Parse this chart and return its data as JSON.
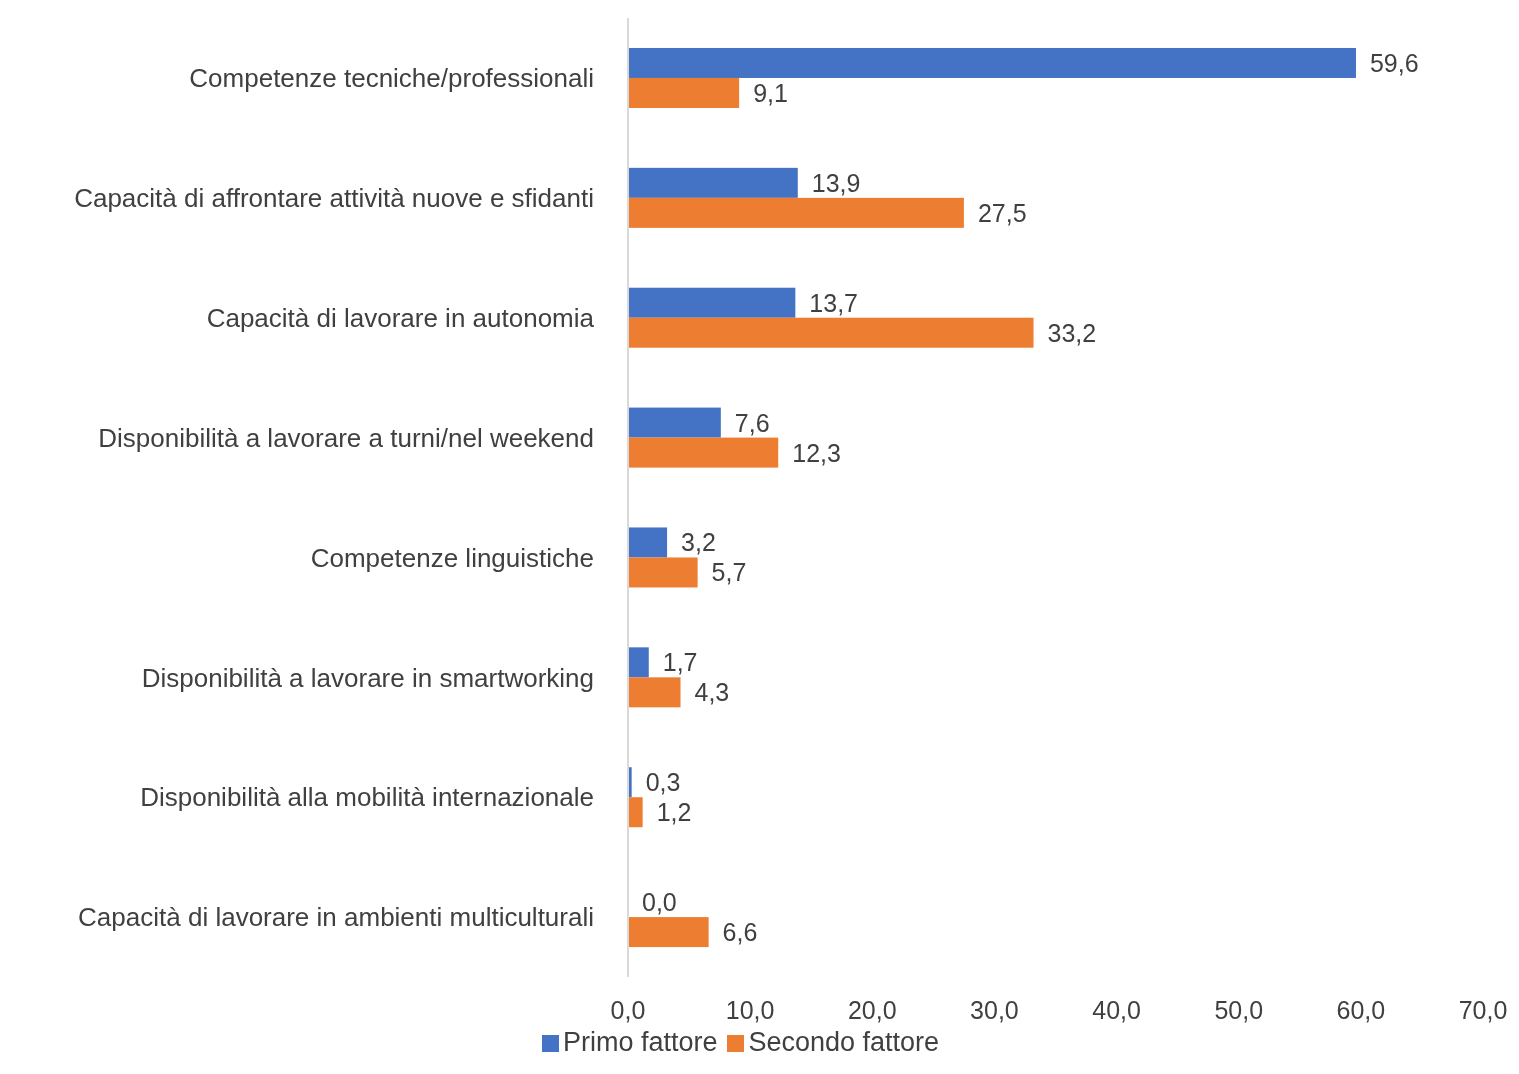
{
  "chart_data": {
    "type": "bar",
    "orientation": "horizontal",
    "categories": [
      "Competenze tecniche/professionali",
      "Capacità di affrontare attività nuove e sfidanti",
      "Capacità di lavorare in autonomia",
      "Disponibilità a lavorare a turni/nel weekend",
      "Competenze linguistiche",
      "Disponibilità a lavorare in smartworking",
      "Disponibilità alla mobilità internazionale",
      "Capacità di lavorare in ambienti multiculturali"
    ],
    "series": [
      {
        "name": "Primo fattore",
        "color": "#4472c4",
        "values": [
          59.6,
          13.9,
          13.7,
          7.6,
          3.2,
          1.7,
          0.3,
          0.0
        ],
        "value_labels": [
          "59,6",
          "13,9",
          "13,7",
          "7,6",
          "3,2",
          "1,7",
          "0,3",
          "0,0"
        ]
      },
      {
        "name": "Secondo fattore",
        "color": "#ed7d31",
        "values": [
          9.1,
          27.5,
          33.2,
          12.3,
          5.7,
          4.3,
          1.2,
          6.6
        ],
        "value_labels": [
          "9,1",
          "27,5",
          "33,2",
          "12,3",
          "5,7",
          "4,3",
          "1,2",
          "6,6"
        ]
      }
    ],
    "xlim": [
      0,
      70
    ],
    "xticks": [
      {
        "value": 0,
        "label": "0,0"
      },
      {
        "value": 10,
        "label": "10,0"
      },
      {
        "value": 20,
        "label": "20,0"
      },
      {
        "value": 30,
        "label": "30,0"
      },
      {
        "value": 40,
        "label": "40,0"
      },
      {
        "value": 50,
        "label": "50,0"
      },
      {
        "value": 60,
        "label": "60,0"
      },
      {
        "value": 70,
        "label": "70,0"
      }
    ],
    "legend": "bottom"
  }
}
